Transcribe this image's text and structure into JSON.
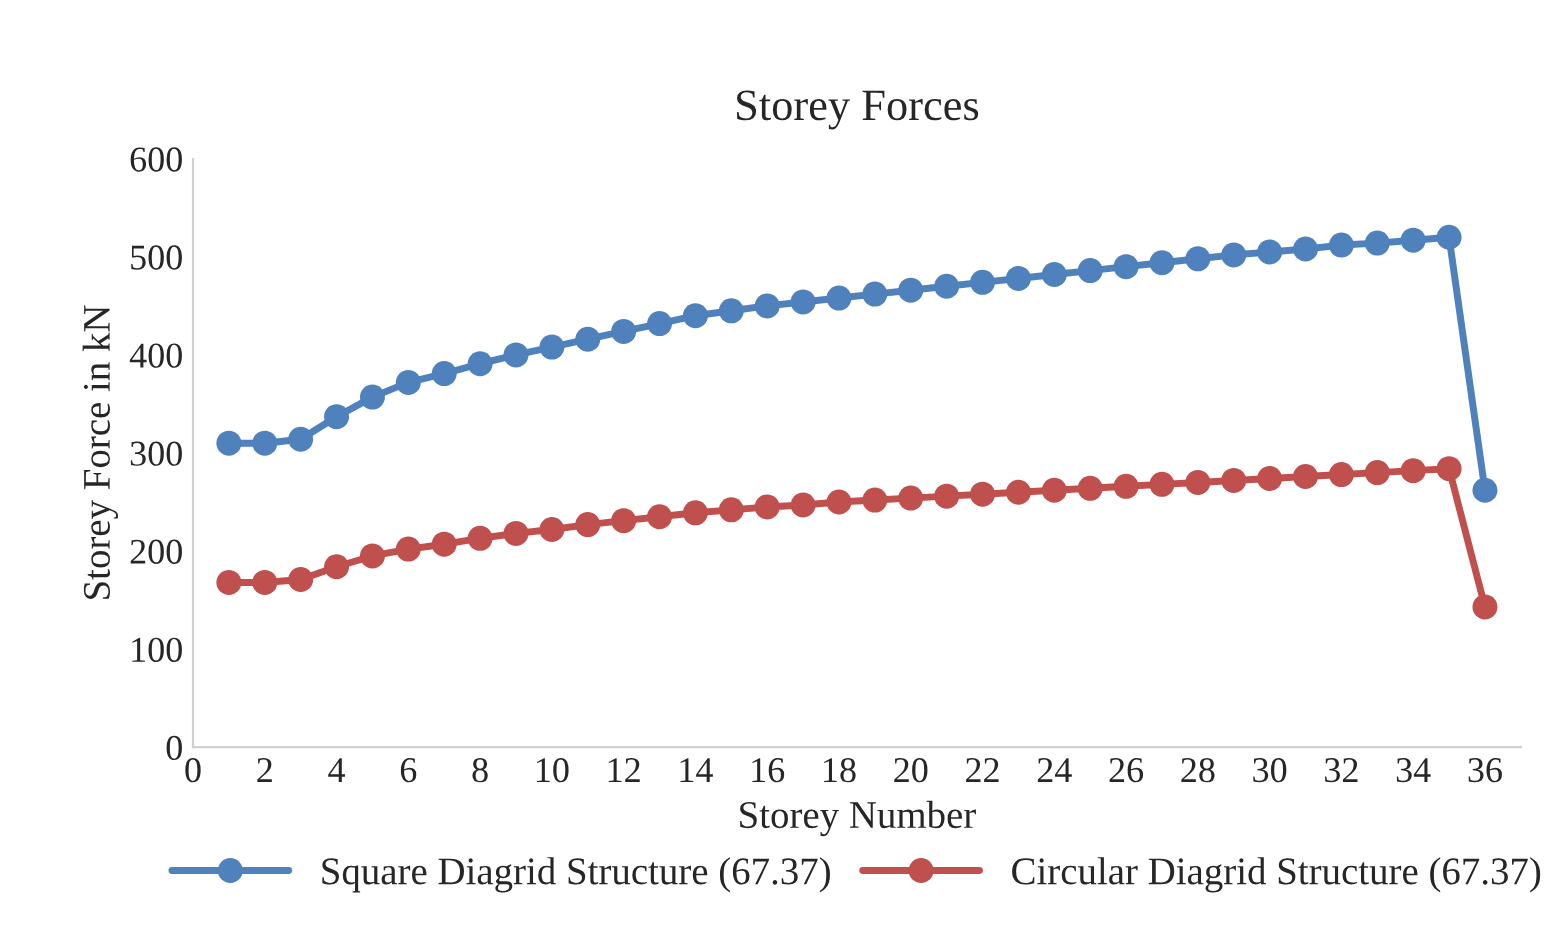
{
  "chart_data": {
    "type": "line",
    "title": "Storey Forces",
    "xlabel": "Storey Number",
    "ylabel": "Storey Force in kN",
    "x": [
      1,
      2,
      3,
      4,
      5,
      6,
      7,
      8,
      9,
      10,
      11,
      12,
      13,
      14,
      15,
      16,
      17,
      18,
      19,
      20,
      21,
      22,
      23,
      24,
      25,
      26,
      27,
      28,
      29,
      30,
      31,
      32,
      33,
      34,
      35,
      36
    ],
    "series": [
      {
        "name": "Square Diagrid Structure (67.37)",
        "color": "#4f81bd",
        "values": [
          310,
          310,
          314,
          337,
          357,
          372,
          381,
          391,
          400,
          408,
          416,
          424,
          432,
          440,
          445,
          450,
          454,
          458,
          462,
          466,
          470,
          474,
          478,
          482,
          486,
          490,
          494,
          498,
          502,
          505,
          508,
          512,
          514,
          517,
          520,
          262
        ]
      },
      {
        "name": "Circular Diagrid Structure (67.37)",
        "color": "#c0504d",
        "values": [
          168,
          168,
          171,
          184,
          195,
          202,
          207,
          213,
          218,
          222,
          227,
          231,
          235,
          239,
          242,
          245,
          247,
          250,
          252,
          254,
          256,
          258,
          260,
          262,
          264,
          266,
          268,
          270,
          272,
          274,
          276,
          278,
          280,
          282,
          284,
          143
        ]
      }
    ],
    "xlim": [
      0,
      37
    ],
    "xticks": [
      0,
      2,
      4,
      6,
      8,
      10,
      12,
      14,
      16,
      18,
      20,
      22,
      24,
      26,
      28,
      30,
      32,
      34,
      36
    ],
    "ylim": [
      0,
      600
    ],
    "yticks": [
      0,
      100,
      200,
      300,
      400,
      500,
      600
    ],
    "grid": false,
    "legend": "bottom",
    "marker": "circle",
    "line_style": "solid"
  }
}
